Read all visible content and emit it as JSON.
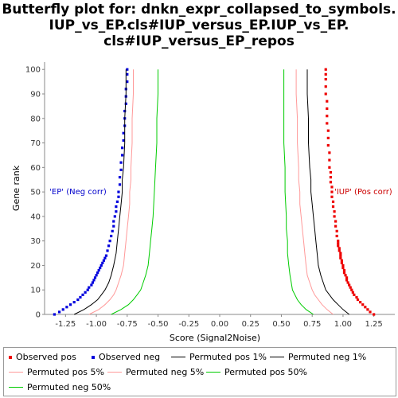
{
  "title_lines": [
    "Butterfly plot for: dnkn_expr_collapsed_to_symbols.",
    "IUP_vs_EP.cls#IUP_versus_EP.IUP_vs_EP.",
    "cls#IUP_versus_EP_repos"
  ],
  "chart_data": {
    "type": "scatter",
    "xlabel": "Score (Signal2Noise)",
    "ylabel": "Gene rank",
    "xlim": [
      -1.42,
      1.42
    ],
    "ylim": [
      0,
      103
    ],
    "x_ticks": [
      -1.25,
      -1.0,
      -0.75,
      -0.5,
      -0.25,
      0.0,
      0.25,
      0.5,
      0.75,
      1.0,
      1.25
    ],
    "x_tick_labels": [
      "-1.25",
      "-1.00",
      "-0.75",
      "-0.50",
      "-0.25",
      "0.00",
      "0.25",
      "0.50",
      "0.75",
      "1.00",
      "1.25"
    ],
    "y_ticks": [
      0,
      10,
      20,
      30,
      40,
      50,
      60,
      70,
      80,
      90,
      100
    ],
    "y_tick_labels": [
      "0",
      "10",
      "20",
      "30",
      "40",
      "50",
      "60",
      "70",
      "80",
      "90",
      "100"
    ],
    "annotations": [
      {
        "text": "'EP' (Neg corr)",
        "x": -1.38,
        "y": 50,
        "color": "#0000cc"
      },
      {
        "text": "'IUP' (Pos corr)",
        "x": 0.93,
        "y": 50,
        "color": "#cc0000"
      }
    ],
    "series": [
      {
        "name": "Observed pos",
        "style": "points",
        "color": "#ee0000",
        "points": [
          [
            1.25,
            0
          ],
          [
            1.22,
            1
          ],
          [
            1.2,
            2
          ],
          [
            1.18,
            3
          ],
          [
            1.16,
            4
          ],
          [
            1.14,
            5
          ],
          [
            1.12,
            6
          ],
          [
            1.11,
            7
          ],
          [
            1.09,
            8
          ],
          [
            1.08,
            9
          ],
          [
            1.07,
            10
          ],
          [
            1.06,
            11
          ],
          [
            1.05,
            12
          ],
          [
            1.04,
            13
          ],
          [
            1.03,
            14
          ],
          [
            1.03,
            15
          ],
          [
            1.02,
            16
          ],
          [
            1.01,
            17
          ],
          [
            1.01,
            18
          ],
          [
            1.0,
            19
          ],
          [
            1.0,
            20
          ],
          [
            0.99,
            21
          ],
          [
            0.99,
            22
          ],
          [
            0.98,
            23
          ],
          [
            0.98,
            24
          ],
          [
            0.98,
            25
          ],
          [
            0.97,
            26
          ],
          [
            0.97,
            27
          ],
          [
            0.96,
            28
          ],
          [
            0.96,
            29
          ],
          [
            0.96,
            30
          ],
          [
            0.95,
            32
          ],
          [
            0.95,
            34
          ],
          [
            0.94,
            36
          ],
          [
            0.94,
            38
          ],
          [
            0.93,
            40
          ],
          [
            0.93,
            42
          ],
          [
            0.92,
            44
          ],
          [
            0.92,
            46
          ],
          [
            0.91,
            48
          ],
          [
            0.91,
            50
          ],
          [
            0.91,
            52
          ],
          [
            0.9,
            54
          ],
          [
            0.9,
            56
          ],
          [
            0.9,
            58
          ],
          [
            0.89,
            60
          ],
          [
            0.89,
            63
          ],
          [
            0.89,
            66
          ],
          [
            0.88,
            69
          ],
          [
            0.88,
            72
          ],
          [
            0.88,
            75
          ],
          [
            0.87,
            78
          ],
          [
            0.87,
            81
          ],
          [
            0.87,
            84
          ],
          [
            0.87,
            87
          ],
          [
            0.86,
            90
          ],
          [
            0.86,
            93
          ],
          [
            0.86,
            96
          ],
          [
            0.86,
            98
          ],
          [
            0.86,
            100
          ]
        ]
      },
      {
        "name": "Observed neg",
        "style": "points",
        "color": "#0000dd",
        "points": [
          [
            -1.34,
            0
          ],
          [
            -1.3,
            1
          ],
          [
            -1.27,
            2
          ],
          [
            -1.24,
            3
          ],
          [
            -1.21,
            4
          ],
          [
            -1.18,
            5
          ],
          [
            -1.15,
            6
          ],
          [
            -1.13,
            7
          ],
          [
            -1.11,
            8
          ],
          [
            -1.09,
            9
          ],
          [
            -1.07,
            10
          ],
          [
            -1.06,
            11
          ],
          [
            -1.04,
            12
          ],
          [
            -1.03,
            13
          ],
          [
            -1.02,
            14
          ],
          [
            -1.01,
            15
          ],
          [
            -1.0,
            16
          ],
          [
            -0.99,
            17
          ],
          [
            -0.98,
            18
          ],
          [
            -0.97,
            19
          ],
          [
            -0.96,
            20
          ],
          [
            -0.95,
            21
          ],
          [
            -0.94,
            22
          ],
          [
            -0.93,
            23
          ],
          [
            -0.92,
            24
          ],
          [
            -0.91,
            26
          ],
          [
            -0.9,
            28
          ],
          [
            -0.89,
            30
          ],
          [
            -0.88,
            32
          ],
          [
            -0.87,
            34
          ],
          [
            -0.86,
            36
          ],
          [
            -0.86,
            38
          ],
          [
            -0.85,
            40
          ],
          [
            -0.84,
            42
          ],
          [
            -0.84,
            44
          ],
          [
            -0.83,
            46
          ],
          [
            -0.82,
            48
          ],
          [
            -0.82,
            50
          ],
          [
            -0.81,
            53
          ],
          [
            -0.81,
            56
          ],
          [
            -0.8,
            59
          ],
          [
            -0.8,
            62
          ],
          [
            -0.79,
            65
          ],
          [
            -0.79,
            68
          ],
          [
            -0.78,
            71
          ],
          [
            -0.78,
            74
          ],
          [
            -0.77,
            77
          ],
          [
            -0.77,
            80
          ],
          [
            -0.77,
            83
          ],
          [
            -0.76,
            86
          ],
          [
            -0.76,
            89
          ],
          [
            -0.76,
            92
          ],
          [
            -0.75,
            95
          ],
          [
            -0.75,
            98
          ],
          [
            -0.75,
            100
          ]
        ]
      },
      {
        "name": "Permuted pos 1%",
        "style": "line",
        "color": "#000000",
        "points": [
          [
            1.05,
            0
          ],
          [
            1.0,
            2
          ],
          [
            0.96,
            4
          ],
          [
            0.92,
            6
          ],
          [
            0.89,
            8
          ],
          [
            0.86,
            10
          ],
          [
            0.84,
            13
          ],
          [
            0.82,
            16
          ],
          [
            0.8,
            20
          ],
          [
            0.79,
            25
          ],
          [
            0.78,
            30
          ],
          [
            0.77,
            35
          ],
          [
            0.76,
            40
          ],
          [
            0.75,
            45
          ],
          [
            0.74,
            50
          ],
          [
            0.74,
            55
          ],
          [
            0.73,
            60
          ],
          [
            0.72,
            70
          ],
          [
            0.72,
            80
          ],
          [
            0.71,
            90
          ],
          [
            0.71,
            100
          ]
        ]
      },
      {
        "name": "Permuted neg 1%",
        "style": "line",
        "color": "#000000",
        "points": [
          [
            -1.18,
            0
          ],
          [
            -1.1,
            2
          ],
          [
            -1.04,
            4
          ],
          [
            -0.99,
            6
          ],
          [
            -0.96,
            8
          ],
          [
            -0.93,
            10
          ],
          [
            -0.9,
            13
          ],
          [
            -0.88,
            16
          ],
          [
            -0.86,
            20
          ],
          [
            -0.84,
            25
          ],
          [
            -0.83,
            30
          ],
          [
            -0.82,
            35
          ],
          [
            -0.81,
            40
          ],
          [
            -0.8,
            45
          ],
          [
            -0.79,
            50
          ],
          [
            -0.79,
            55
          ],
          [
            -0.78,
            60
          ],
          [
            -0.77,
            70
          ],
          [
            -0.77,
            80
          ],
          [
            -0.76,
            90
          ],
          [
            -0.76,
            100
          ]
        ]
      },
      {
        "name": "Permuted pos 5%",
        "style": "line",
        "color": "#ff9999",
        "points": [
          [
            0.92,
            0
          ],
          [
            0.87,
            2
          ],
          [
            0.83,
            4
          ],
          [
            0.8,
            6
          ],
          [
            0.77,
            8
          ],
          [
            0.75,
            10
          ],
          [
            0.73,
            13
          ],
          [
            0.71,
            16
          ],
          [
            0.7,
            20
          ],
          [
            0.69,
            25
          ],
          [
            0.68,
            30
          ],
          [
            0.67,
            35
          ],
          [
            0.66,
            40
          ],
          [
            0.65,
            45
          ],
          [
            0.65,
            50
          ],
          [
            0.64,
            55
          ],
          [
            0.64,
            60
          ],
          [
            0.63,
            70
          ],
          [
            0.63,
            80
          ],
          [
            0.62,
            90
          ],
          [
            0.62,
            100
          ]
        ]
      },
      {
        "name": "Permuted neg 5%",
        "style": "line",
        "color": "#ff9999",
        "points": [
          [
            -1.06,
            0
          ],
          [
            -0.98,
            2
          ],
          [
            -0.93,
            4
          ],
          [
            -0.89,
            6
          ],
          [
            -0.86,
            8
          ],
          [
            -0.84,
            10
          ],
          [
            -0.82,
            13
          ],
          [
            -0.8,
            16
          ],
          [
            -0.78,
            20
          ],
          [
            -0.77,
            25
          ],
          [
            -0.76,
            30
          ],
          [
            -0.75,
            35
          ],
          [
            -0.74,
            40
          ],
          [
            -0.73,
            45
          ],
          [
            -0.73,
            50
          ],
          [
            -0.72,
            55
          ],
          [
            -0.72,
            60
          ],
          [
            -0.71,
            70
          ],
          [
            -0.71,
            80
          ],
          [
            -0.7,
            90
          ],
          [
            -0.7,
            100
          ]
        ]
      },
      {
        "name": "Permuted pos 50%",
        "style": "line",
        "color": "#00cc00",
        "points": [
          [
            0.76,
            0
          ],
          [
            0.7,
            2
          ],
          [
            0.66,
            4
          ],
          [
            0.63,
            6
          ],
          [
            0.61,
            8
          ],
          [
            0.59,
            10
          ],
          [
            0.58,
            13
          ],
          [
            0.57,
            16
          ],
          [
            0.56,
            20
          ],
          [
            0.55,
            25
          ],
          [
            0.55,
            30
          ],
          [
            0.54,
            35
          ],
          [
            0.54,
            40
          ],
          [
            0.53,
            50
          ],
          [
            0.53,
            60
          ],
          [
            0.52,
            70
          ],
          [
            0.52,
            80
          ],
          [
            0.52,
            90
          ],
          [
            0.52,
            100
          ]
        ]
      },
      {
        "name": "Permuted neg 50%",
        "style": "line",
        "color": "#00cc00",
        "points": [
          [
            -0.88,
            0
          ],
          [
            -0.8,
            2
          ],
          [
            -0.74,
            4
          ],
          [
            -0.7,
            6
          ],
          [
            -0.67,
            8
          ],
          [
            -0.64,
            10
          ],
          [
            -0.62,
            13
          ],
          [
            -0.6,
            16
          ],
          [
            -0.58,
            20
          ],
          [
            -0.57,
            25
          ],
          [
            -0.56,
            30
          ],
          [
            -0.55,
            35
          ],
          [
            -0.54,
            40
          ],
          [
            -0.53,
            50
          ],
          [
            -0.52,
            60
          ],
          [
            -0.51,
            70
          ],
          [
            -0.51,
            80
          ],
          [
            -0.5,
            90
          ],
          [
            -0.5,
            100
          ]
        ]
      }
    ]
  },
  "legend": [
    {
      "label": "Observed pos",
      "marker": "dot",
      "color": "#ee0000"
    },
    {
      "label": "Observed neg",
      "marker": "dot",
      "color": "#0000dd"
    },
    {
      "label": "Permuted pos 1%",
      "marker": "line",
      "color": "#000000"
    },
    {
      "label": "Permuted neg 1%",
      "marker": "line",
      "color": "#000000"
    },
    {
      "label": "Permuted pos 5%",
      "marker": "line",
      "color": "#ff9999"
    },
    {
      "label": "Permuted neg 5%",
      "marker": "line",
      "color": "#ff9999"
    },
    {
      "label": "Permuted pos 50%",
      "marker": "line",
      "color": "#00cc00"
    },
    {
      "label": "Permuted neg 50%",
      "marker": "line",
      "color": "#00cc00"
    }
  ]
}
